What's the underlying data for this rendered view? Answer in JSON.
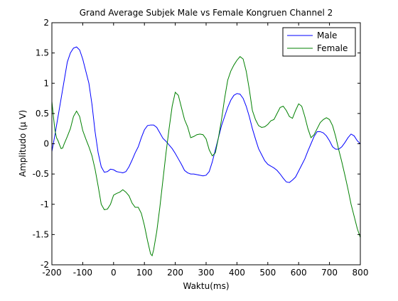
{
  "chart_data": {
    "type": "line",
    "title": "Grand Average Subjek Male vs Female Kongruen Channel 2",
    "xlabel": "Waktu(ms)",
    "ylabel": "Amplitudo (µ V)",
    "xlim": [
      -200,
      800
    ],
    "ylim": [
      -2,
      2
    ],
    "xticks": [
      -200,
      -100,
      0,
      100,
      200,
      300,
      400,
      500,
      600,
      700,
      800
    ],
    "yticks": [
      -2,
      -1.5,
      -1,
      -0.5,
      0,
      0.5,
      1,
      1.5,
      2
    ],
    "grid": false,
    "legend_position": "top-right",
    "series": [
      {
        "name": "Male",
        "color": "#0000ff",
        "points": [
          [
            -200,
            -0.13
          ],
          [
            -190,
            0.15
          ],
          [
            -180,
            0.45
          ],
          [
            -170,
            0.75
          ],
          [
            -160,
            1.05
          ],
          [
            -150,
            1.35
          ],
          [
            -140,
            1.5
          ],
          [
            -130,
            1.58
          ],
          [
            -120,
            1.6
          ],
          [
            -110,
            1.55
          ],
          [
            -100,
            1.4
          ],
          [
            -90,
            1.2
          ],
          [
            -80,
            1.0
          ],
          [
            -70,
            0.65
          ],
          [
            -60,
            0.2
          ],
          [
            -50,
            -0.15
          ],
          [
            -40,
            -0.38
          ],
          [
            -30,
            -0.47
          ],
          [
            -20,
            -0.46
          ],
          [
            -10,
            -0.42
          ],
          [
            0,
            -0.43
          ],
          [
            10,
            -0.46
          ],
          [
            20,
            -0.47
          ],
          [
            30,
            -0.48
          ],
          [
            40,
            -0.46
          ],
          [
            50,
            -0.38
          ],
          [
            60,
            -0.27
          ],
          [
            70,
            -0.15
          ],
          [
            80,
            -0.05
          ],
          [
            90,
            0.1
          ],
          [
            100,
            0.23
          ],
          [
            110,
            0.3
          ],
          [
            120,
            0.31
          ],
          [
            130,
            0.31
          ],
          [
            140,
            0.27
          ],
          [
            150,
            0.18
          ],
          [
            160,
            0.09
          ],
          [
            170,
            0.04
          ],
          [
            180,
            -0.02
          ],
          [
            190,
            -0.08
          ],
          [
            200,
            -0.16
          ],
          [
            210,
            -0.25
          ],
          [
            220,
            -0.34
          ],
          [
            230,
            -0.44
          ],
          [
            240,
            -0.48
          ],
          [
            250,
            -0.5
          ],
          [
            260,
            -0.5
          ],
          [
            270,
            -0.51
          ],
          [
            280,
            -0.52
          ],
          [
            290,
            -0.53
          ],
          [
            300,
            -0.52
          ],
          [
            310,
            -0.46
          ],
          [
            320,
            -0.3
          ],
          [
            330,
            -0.1
          ],
          [
            340,
            0.1
          ],
          [
            350,
            0.3
          ],
          [
            360,
            0.45
          ],
          [
            370,
            0.6
          ],
          [
            380,
            0.72
          ],
          [
            390,
            0.8
          ],
          [
            400,
            0.83
          ],
          [
            410,
            0.82
          ],
          [
            420,
            0.75
          ],
          [
            430,
            0.62
          ],
          [
            440,
            0.45
          ],
          [
            450,
            0.25
          ],
          [
            460,
            0.08
          ],
          [
            470,
            -0.08
          ],
          [
            480,
            -0.18
          ],
          [
            490,
            -0.28
          ],
          [
            500,
            -0.34
          ],
          [
            510,
            -0.37
          ],
          [
            520,
            -0.4
          ],
          [
            530,
            -0.44
          ],
          [
            540,
            -0.5
          ],
          [
            550,
            -0.57
          ],
          [
            560,
            -0.63
          ],
          [
            570,
            -0.64
          ],
          [
            580,
            -0.6
          ],
          [
            590,
            -0.55
          ],
          [
            600,
            -0.45
          ],
          [
            610,
            -0.35
          ],
          [
            620,
            -0.25
          ],
          [
            630,
            -0.12
          ],
          [
            640,
            0.0
          ],
          [
            650,
            0.12
          ],
          [
            660,
            0.2
          ],
          [
            670,
            0.2
          ],
          [
            680,
            0.18
          ],
          [
            690,
            0.13
          ],
          [
            700,
            0.05
          ],
          [
            710,
            -0.05
          ],
          [
            720,
            -0.09
          ],
          [
            730,
            -0.09
          ],
          [
            740,
            -0.05
          ],
          [
            750,
            0.02
          ],
          [
            760,
            0.1
          ],
          [
            770,
            0.16
          ],
          [
            780,
            0.13
          ],
          [
            790,
            0.05
          ],
          [
            800,
            0.0
          ]
        ]
      },
      {
        "name": "Female",
        "color": "#008000",
        "points": [
          [
            -200,
            0.7
          ],
          [
            -195,
            0.45
          ],
          [
            -190,
            0.22
          ],
          [
            -185,
            0.1
          ],
          [
            -180,
            0.05
          ],
          [
            -175,
            -0.02
          ],
          [
            -170,
            -0.08
          ],
          [
            -165,
            -0.07
          ],
          [
            -160,
            0.0
          ],
          [
            -150,
            0.12
          ],
          [
            -140,
            0.25
          ],
          [
            -130,
            0.45
          ],
          [
            -120,
            0.54
          ],
          [
            -110,
            0.45
          ],
          [
            -100,
            0.22
          ],
          [
            -90,
            0.08
          ],
          [
            -80,
            -0.05
          ],
          [
            -70,
            -0.2
          ],
          [
            -60,
            -0.42
          ],
          [
            -50,
            -0.7
          ],
          [
            -40,
            -1.0
          ],
          [
            -30,
            -1.09
          ],
          [
            -20,
            -1.08
          ],
          [
            -10,
            -1.0
          ],
          [
            0,
            -0.85
          ],
          [
            10,
            -0.82
          ],
          [
            20,
            -0.8
          ],
          [
            30,
            -0.76
          ],
          [
            40,
            -0.8
          ],
          [
            50,
            -0.86
          ],
          [
            60,
            -0.98
          ],
          [
            70,
            -1.05
          ],
          [
            80,
            -1.05
          ],
          [
            90,
            -1.15
          ],
          [
            100,
            -1.35
          ],
          [
            110,
            -1.6
          ],
          [
            120,
            -1.82
          ],
          [
            125,
            -1.85
          ],
          [
            130,
            -1.75
          ],
          [
            140,
            -1.45
          ],
          [
            150,
            -1.05
          ],
          [
            160,
            -0.6
          ],
          [
            170,
            -0.15
          ],
          [
            180,
            0.25
          ],
          [
            190,
            0.62
          ],
          [
            200,
            0.85
          ],
          [
            210,
            0.8
          ],
          [
            220,
            0.6
          ],
          [
            230,
            0.4
          ],
          [
            240,
            0.28
          ],
          [
            250,
            0.1
          ],
          [
            260,
            0.12
          ],
          [
            270,
            0.15
          ],
          [
            280,
            0.16
          ],
          [
            290,
            0.15
          ],
          [
            300,
            0.08
          ],
          [
            310,
            -0.1
          ],
          [
            320,
            -0.2
          ],
          [
            330,
            -0.15
          ],
          [
            340,
            0.1
          ],
          [
            350,
            0.4
          ],
          [
            360,
            0.75
          ],
          [
            370,
            1.05
          ],
          [
            380,
            1.2
          ],
          [
            390,
            1.3
          ],
          [
            400,
            1.38
          ],
          [
            410,
            1.44
          ],
          [
            420,
            1.4
          ],
          [
            430,
            1.2
          ],
          [
            440,
            0.9
          ],
          [
            450,
            0.55
          ],
          [
            460,
            0.4
          ],
          [
            470,
            0.3
          ],
          [
            480,
            0.27
          ],
          [
            490,
            0.28
          ],
          [
            500,
            0.32
          ],
          [
            510,
            0.38
          ],
          [
            520,
            0.4
          ],
          [
            530,
            0.5
          ],
          [
            540,
            0.6
          ],
          [
            550,
            0.62
          ],
          [
            560,
            0.55
          ],
          [
            570,
            0.45
          ],
          [
            580,
            0.42
          ],
          [
            590,
            0.55
          ],
          [
            600,
            0.66
          ],
          [
            610,
            0.62
          ],
          [
            620,
            0.45
          ],
          [
            630,
            0.25
          ],
          [
            640,
            0.1
          ],
          [
            650,
            0.15
          ],
          [
            660,
            0.25
          ],
          [
            670,
            0.35
          ],
          [
            680,
            0.4
          ],
          [
            690,
            0.43
          ],
          [
            700,
            0.4
          ],
          [
            710,
            0.3
          ],
          [
            720,
            0.12
          ],
          [
            730,
            -0.1
          ],
          [
            740,
            -0.3
          ],
          [
            750,
            -0.52
          ],
          [
            760,
            -0.75
          ],
          [
            770,
            -1.0
          ],
          [
            780,
            -1.2
          ],
          [
            790,
            -1.4
          ],
          [
            800,
            -1.55
          ]
        ]
      }
    ]
  }
}
